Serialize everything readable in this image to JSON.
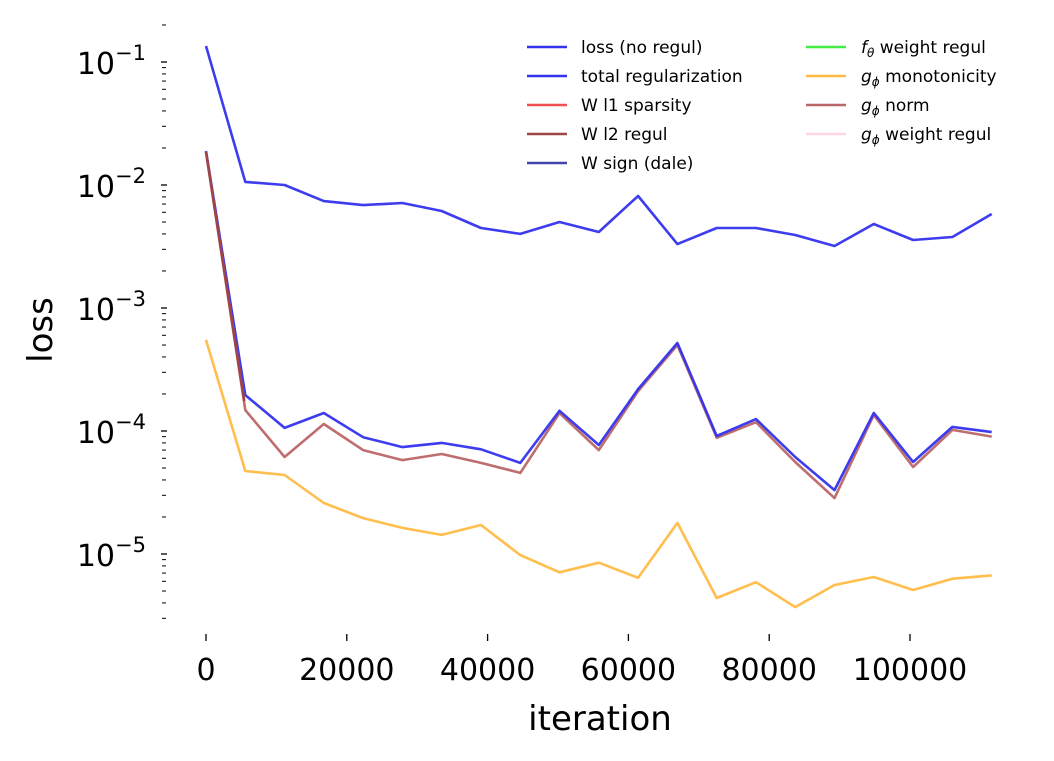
{
  "chart_data": {
    "type": "line",
    "title": "",
    "xlabel": "iteration",
    "ylabel": "loss",
    "yscale": "log",
    "xlim": [
      -4000,
      114000
    ],
    "ylim": [
      2.2e-06,
      0.2
    ],
    "grid": false,
    "legend_position": "top-right",
    "legend_columns": 2,
    "x_ticks": [
      0,
      20000,
      40000,
      60000,
      80000,
      100000
    ],
    "x_tick_labels": [
      "0",
      "20000",
      "40000",
      "60000",
      "80000",
      "100000"
    ],
    "y_ticks": [
      0.1,
      0.01,
      0.001,
      0.0001,
      1e-05
    ],
    "y_tick_labels": [
      {
        "base": "10",
        "exp": "−1"
      },
      {
        "base": "10",
        "exp": "−2"
      },
      {
        "base": "10",
        "exp": "−3"
      },
      {
        "base": "10",
        "exp": "−4"
      },
      {
        "base": "10",
        "exp": "−5"
      }
    ],
    "x": [
      0,
      5580,
      11160,
      16740,
      22320,
      27900,
      33480,
      39060,
      44640,
      50220,
      55800,
      61380,
      66960,
      72540,
      78120,
      83700,
      89280,
      94860,
      100440,
      106020,
      111600
    ],
    "series": [
      {
        "name": "loss (no regul)",
        "label_main": "loss (no regul)",
        "label_sym": "",
        "label_sub": "",
        "color": "#3333ee",
        "values": [
          0.135,
          0.0106,
          0.01,
          0.0074,
          0.00687,
          0.00714,
          0.00615,
          0.00447,
          0.004,
          0.005,
          0.00415,
          0.00814,
          0.00331,
          0.00447,
          0.00447,
          0.00392,
          0.00319,
          0.00482,
          0.00357,
          0.00378,
          0.00581
        ]
      },
      {
        "name": "total regularization",
        "label_main": "total regularization",
        "label_sym": "",
        "label_sub": "",
        "color": "#3333ee",
        "values": [
          0.0189,
          0.000196,
          0.000106,
          0.00014,
          8.9e-05,
          7.4e-05,
          8e-05,
          7.1e-05,
          5.5e-05,
          0.000146,
          7.7e-05,
          0.000219,
          0.000519,
          9.1e-05,
          0.000125,
          6.15e-05,
          3.31e-05,
          0.00014,
          5.6e-05,
          0.000108,
          9.8e-05
        ]
      },
      {
        "name": "W l1 sparsity",
        "label_main": "W l1 sparsity",
        "label_sym": "",
        "label_sub": "",
        "color": "#f05050",
        "values": []
      },
      {
        "name": "W l2 regul",
        "label_main": "W l2 regul",
        "label_sym": "",
        "label_sub": "",
        "color": "#a04545",
        "values": [
          0.0187
        ]
      },
      {
        "name": "W sign (dale)",
        "label_main": "W sign (dale)",
        "label_sym": "",
        "label_sub": "",
        "color": "#4444aa",
        "values": []
      },
      {
        "name": "f_θ weight regul",
        "label_main": " weight regul",
        "label_sym": "f",
        "label_sub": "θ",
        "color": "#44ee44",
        "values": []
      },
      {
        "name": "g_ϕ monotonicity",
        "label_main": " monotonicity",
        "label_sym": "g",
        "label_sub": "ϕ",
        "color": "#ffbb44",
        "values": [
          0.00055,
          4.73e-05,
          4.39e-05,
          2.6e-05,
          1.96e-05,
          1.63e-05,
          1.43e-05,
          1.72e-05,
          9.8e-06,
          7.1e-06,
          8.5e-06,
          6.4e-06,
          1.79e-05,
          4.39e-06,
          5.9e-06,
          3.7e-06,
          5.6e-06,
          6.5e-06,
          5.1e-06,
          6.3e-06,
          6.7e-06
        ]
      },
      {
        "name": "g_ϕ norm",
        "label_main": " norm",
        "label_sym": "g",
        "label_sub": "ϕ",
        "color": "#bb6666",
        "values": [
          0.0185,
          0.000148,
          6.15e-05,
          0.000114,
          7e-05,
          5.8e-05,
          6.5e-05,
          5.5e-05,
          4.56e-05,
          0.00014,
          7e-05,
          0.000211,
          0.0005,
          8.8e-05,
          0.000118,
          5.6e-05,
          2.85e-05,
          0.000135,
          5.1e-05,
          0.000102,
          9e-05
        ]
      },
      {
        "name": "g_ϕ weight regul",
        "label_main": " weight regul",
        "label_sym": "g",
        "label_sub": "ϕ",
        "color": "#ffd6e0",
        "values": []
      }
    ]
  }
}
